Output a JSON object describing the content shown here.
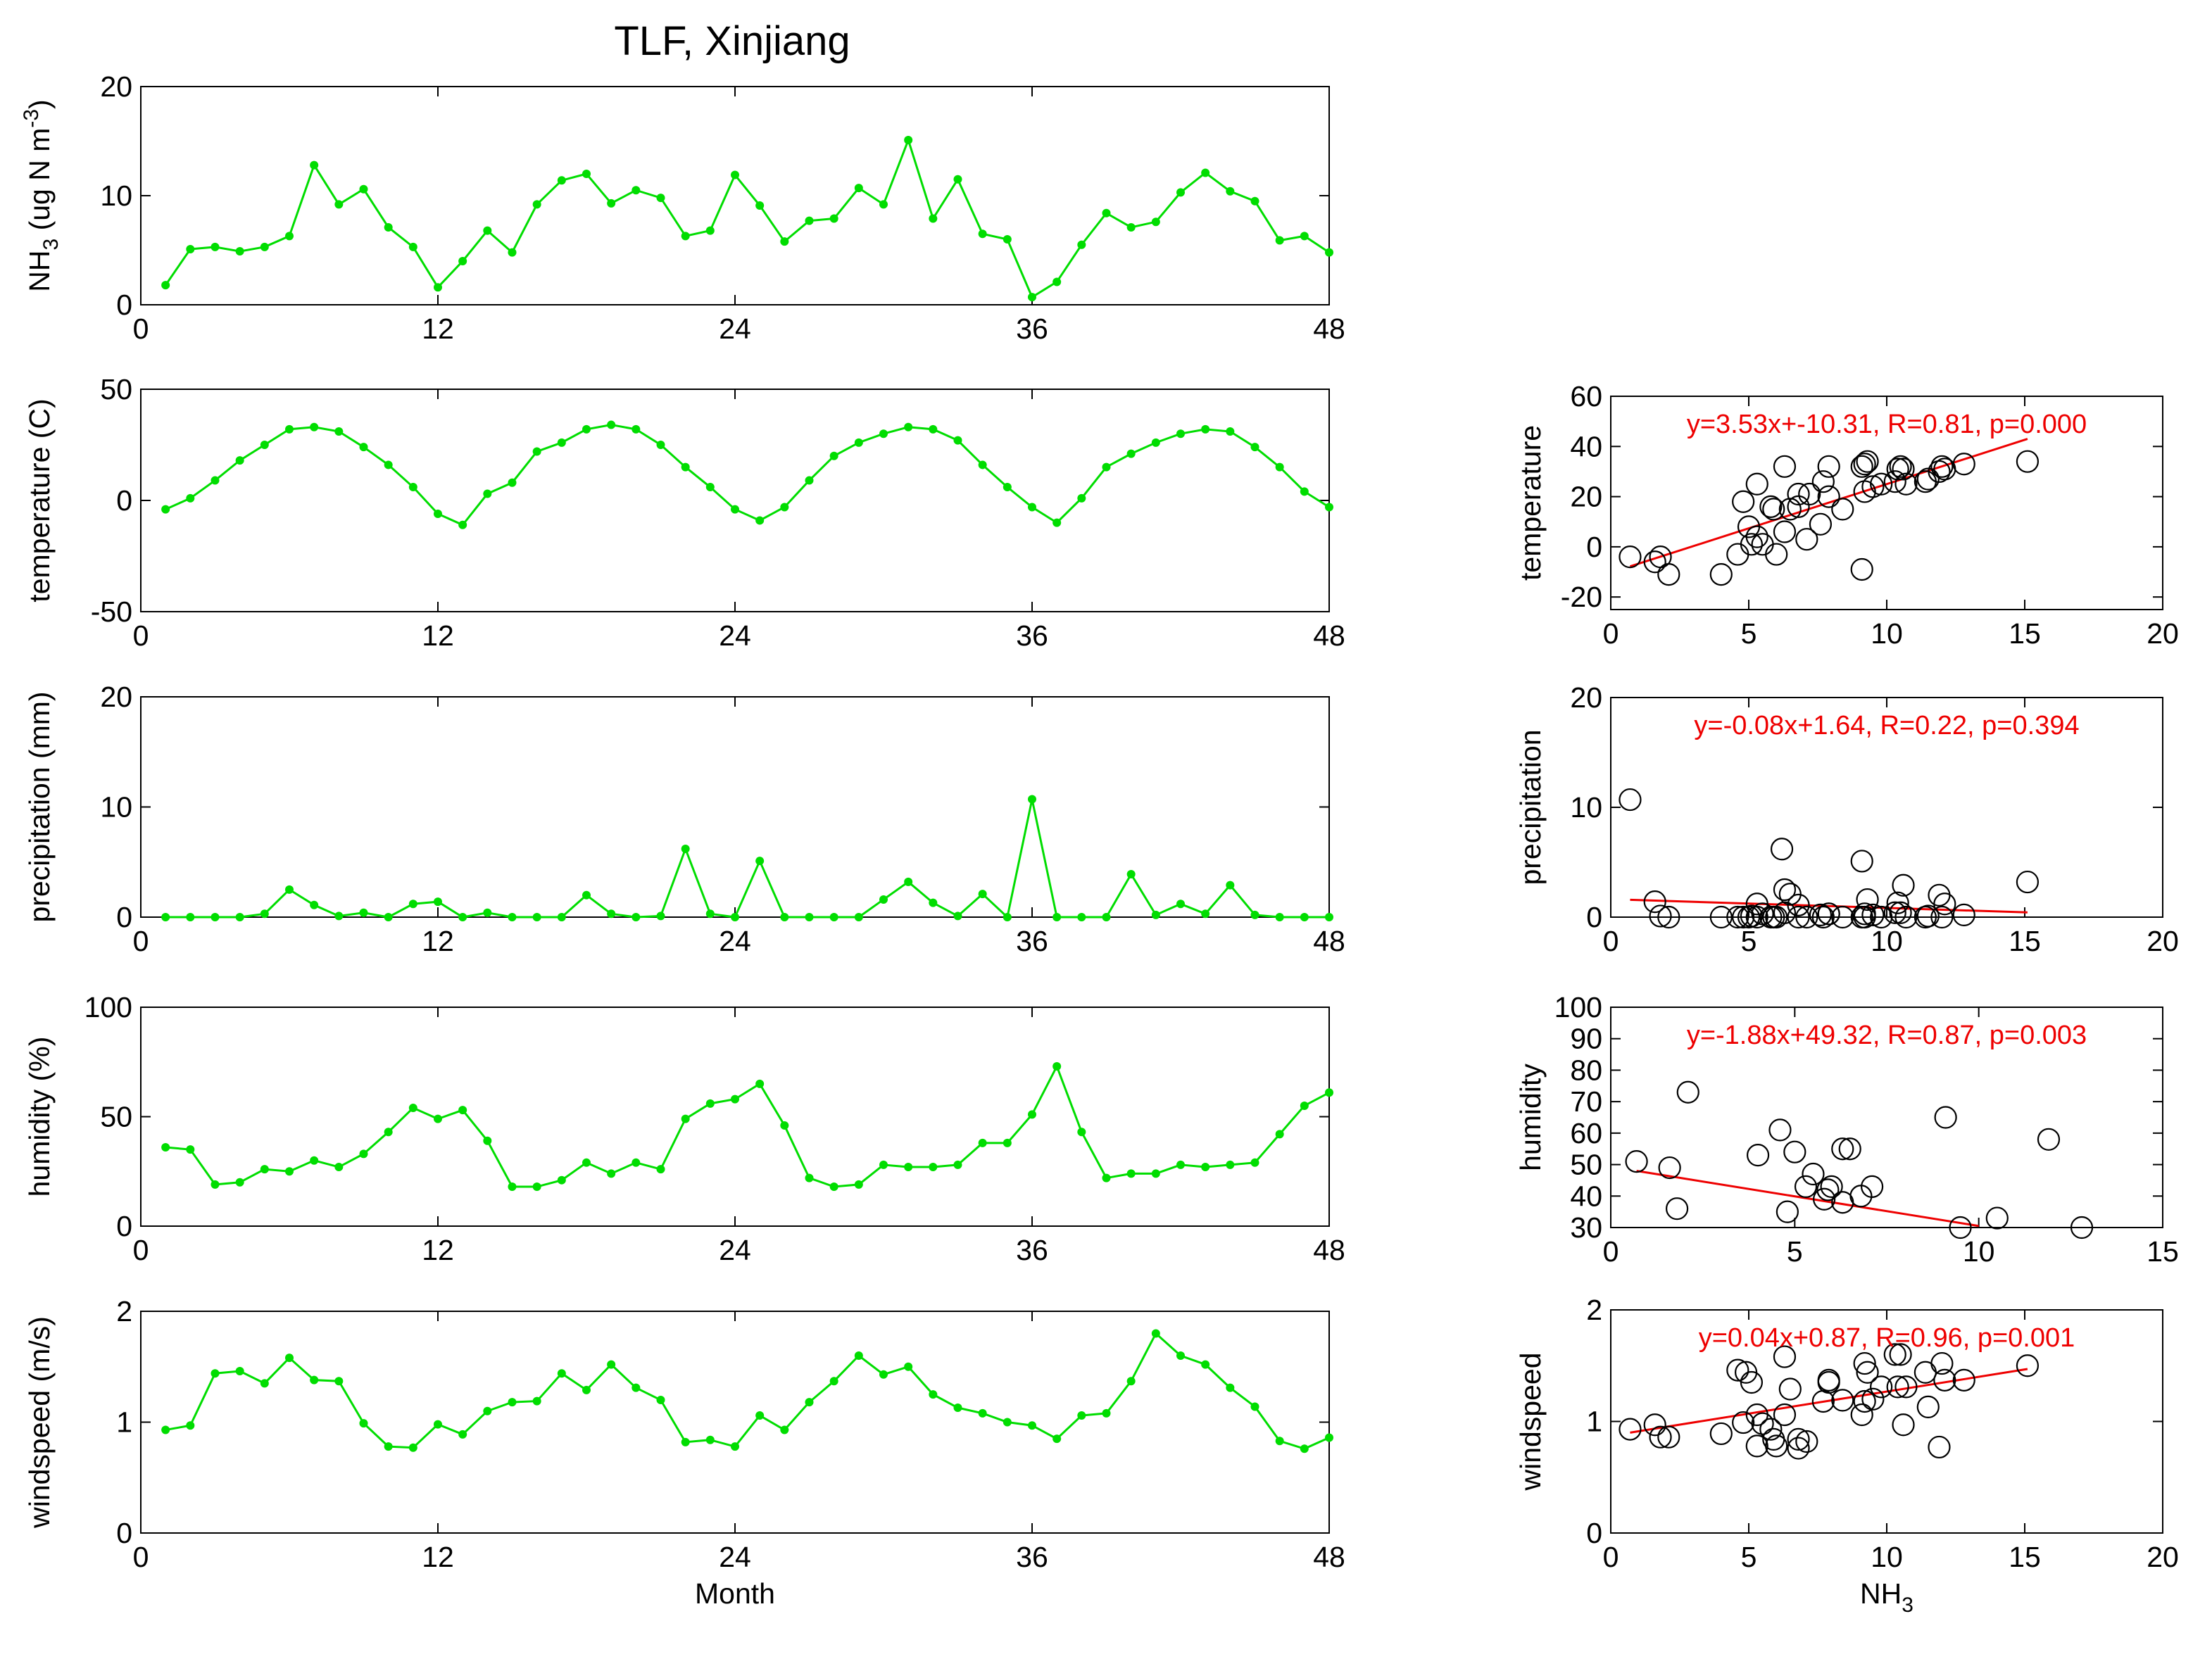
{
  "title": "TLF, Xinjiang",
  "chart_data": [
    {
      "type": "line",
      "id": "ts_nh3",
      "ylabel_main": "NH",
      "ylabel_sub": "3",
      "ylabel_rest": " (ug N m",
      "ylabel_sup": "-3",
      "ylabel_end": ")",
      "xlim": [
        0,
        48
      ],
      "ylim": [
        0,
        20
      ],
      "xticks": [
        "0",
        "12",
        "24",
        "36",
        "48"
      ],
      "yticks": [
        "0",
        "10",
        "20"
      ],
      "color": "#00dd00",
      "x": [
        1,
        2,
        3,
        4,
        5,
        6,
        7,
        8,
        9,
        10,
        11,
        12,
        13,
        14,
        15,
        16,
        17,
        18,
        19,
        20,
        21,
        22,
        23,
        24,
        25,
        26,
        27,
        28,
        29,
        30,
        31,
        32,
        33,
        34,
        35,
        36,
        37,
        38,
        39,
        40,
        41,
        42,
        43,
        44,
        45,
        46,
        47,
        48
      ],
      "y": [
        1.8,
        5.1,
        5.3,
        4.9,
        5.3,
        6.3,
        12.8,
        9.2,
        10.6,
        7.1,
        5.3,
        1.6,
        4.0,
        6.8,
        4.8,
        9.2,
        11.4,
        12.0,
        9.3,
        10.5,
        9.8,
        6.3,
        6.8,
        11.9,
        9.1,
        5.8,
        7.7,
        7.9,
        10.7,
        9.2,
        15.1,
        7.9,
        11.5,
        6.5,
        6.0,
        0.7,
        2.1,
        5.5,
        8.4,
        7.1,
        7.6,
        10.3,
        12.1,
        10.4,
        9.5,
        5.9,
        6.3,
        4.8
      ]
    },
    {
      "type": "line",
      "id": "ts_temp",
      "ylabel": "temperature (C)",
      "xlim": [
        0,
        48
      ],
      "ylim": [
        -50,
        50
      ],
      "xticks": [
        "0",
        "12",
        "24",
        "36",
        "48"
      ],
      "yticks": [
        "-50",
        "0",
        "50"
      ],
      "color": "#00dd00",
      "x": [
        1,
        2,
        3,
        4,
        5,
        6,
        7,
        8,
        9,
        10,
        11,
        12,
        13,
        14,
        15,
        16,
        17,
        18,
        19,
        20,
        21,
        22,
        23,
        24,
        25,
        26,
        27,
        28,
        29,
        30,
        31,
        32,
        33,
        34,
        35,
        36,
        37,
        38,
        39,
        40,
        41,
        42,
        43,
        44,
        45,
        46,
        47,
        48
      ],
      "y": [
        -4,
        1,
        9,
        18,
        25,
        32,
        33,
        31,
        24,
        16,
        6,
        -6,
        -11,
        3,
        8,
        22,
        26,
        32,
        34,
        32,
        25,
        15,
        6,
        -4,
        -9,
        -3,
        9,
        20,
        26,
        30,
        33,
        32,
        27,
        16,
        6,
        -3,
        -10,
        1,
        15,
        21,
        26,
        30,
        32,
        31,
        24,
        15,
        4,
        -3
      ]
    },
    {
      "type": "line",
      "id": "ts_precip",
      "ylabel": "precipitation (mm)",
      "xlim": [
        0,
        48
      ],
      "ylim": [
        0,
        20
      ],
      "xticks": [
        "0",
        "12",
        "24",
        "36",
        "48"
      ],
      "yticks": [
        "0",
        "10",
        "20"
      ],
      "color": "#00dd00",
      "x": [
        1,
        2,
        3,
        4,
        5,
        6,
        7,
        8,
        9,
        10,
        11,
        12,
        13,
        14,
        15,
        16,
        17,
        18,
        19,
        20,
        21,
        22,
        23,
        24,
        25,
        26,
        27,
        28,
        29,
        30,
        31,
        32,
        33,
        34,
        35,
        36,
        37,
        38,
        39,
        40,
        41,
        42,
        43,
        44,
        45,
        46,
        47,
        48
      ],
      "y": [
        0,
        0,
        0,
        0,
        0.3,
        2.5,
        1.1,
        0.1,
        0.4,
        0,
        1.2,
        1.4,
        0,
        0.4,
        0,
        0,
        0,
        2.0,
        0.3,
        0,
        0.1,
        6.2,
        0.3,
        0,
        5.1,
        0,
        0,
        0,
        0,
        1.6,
        3.2,
        1.3,
        0.1,
        2.1,
        0,
        10.7,
        0,
        0,
        0,
        3.9,
        0.2,
        1.2,
        0.3,
        2.9,
        0.2,
        0,
        0,
        0
      ]
    },
    {
      "type": "line",
      "id": "ts_humidity",
      "ylabel": "humidity (%)",
      "xlim": [
        0,
        48
      ],
      "ylim": [
        0,
        100
      ],
      "xticks": [
        "0",
        "12",
        "24",
        "36",
        "48"
      ],
      "yticks": [
        "0",
        "50",
        "100"
      ],
      "color": "#00dd00",
      "x": [
        1,
        2,
        3,
        4,
        5,
        6,
        7,
        8,
        9,
        10,
        11,
        12,
        13,
        14,
        15,
        16,
        17,
        18,
        19,
        20,
        21,
        22,
        23,
        24,
        25,
        26,
        27,
        28,
        29,
        30,
        31,
        32,
        33,
        34,
        35,
        36,
        37,
        38,
        39,
        40,
        41,
        42,
        43,
        44,
        45,
        46,
        47,
        48
      ],
      "y": [
        36,
        35,
        19,
        20,
        26,
        25,
        30,
        27,
        33,
        43,
        54,
        49,
        53,
        39,
        18,
        18,
        21,
        29,
        24,
        29,
        26,
        49,
        56,
        58,
        65,
        46,
        22,
        18,
        19,
        28,
        27,
        27,
        28,
        38,
        38,
        51,
        73,
        43,
        22,
        24,
        24,
        28,
        27,
        28,
        29,
        42,
        55,
        61
      ]
    },
    {
      "type": "line",
      "id": "ts_wind",
      "ylabel": "windspeed (m/s)",
      "xlabel": "Month",
      "xlim": [
        0,
        48
      ],
      "ylim": [
        0,
        2
      ],
      "xticks": [
        "0",
        "12",
        "24",
        "36",
        "48"
      ],
      "yticks": [
        "0",
        "1",
        "2"
      ],
      "color": "#00dd00",
      "x": [
        1,
        2,
        3,
        4,
        5,
        6,
        7,
        8,
        9,
        10,
        11,
        12,
        13,
        14,
        15,
        16,
        17,
        18,
        19,
        20,
        21,
        22,
        23,
        24,
        25,
        26,
        27,
        28,
        29,
        30,
        31,
        32,
        33,
        34,
        35,
        36,
        37,
        38,
        39,
        40,
        41,
        42,
        43,
        44,
        45,
        46,
        47,
        48
      ],
      "y": [
        0.93,
        0.97,
        1.44,
        1.46,
        1.35,
        1.58,
        1.38,
        1.37,
        0.99,
        0.78,
        0.77,
        0.98,
        0.89,
        1.1,
        1.18,
        1.19,
        1.44,
        1.29,
        1.52,
        1.31,
        1.2,
        0.82,
        0.84,
        0.78,
        1.06,
        0.93,
        1.18,
        1.37,
        1.6,
        1.43,
        1.5,
        1.25,
        1.13,
        1.08,
        1.0,
        0.97,
        0.85,
        1.06,
        1.08,
        1.37,
        1.8,
        1.6,
        1.52,
        1.31,
        1.14,
        0.83,
        0.76,
        0.86
      ]
    },
    {
      "type": "scatter",
      "id": "sc_temp",
      "ylabel": "temperature",
      "xlim": [
        0,
        20
      ],
      "ylim": [
        -25,
        60
      ],
      "xticks": [
        "0",
        "5",
        "10",
        "15",
        "20"
      ],
      "yticks": [
        "-20",
        "0",
        "20",
        "40",
        "60"
      ],
      "equation": "y=3.53x+-10.31, R=0.81, p=0.000",
      "fit": {
        "x": [
          0.7,
          15.1
        ],
        "y": [
          -7.8,
          43.0
        ],
        "color": "#ee0000"
      },
      "x": [
        0.7,
        1.6,
        1.8,
        2.1,
        4.0,
        4.6,
        4.8,
        5.0,
        5.1,
        5.3,
        5.3,
        5.5,
        5.8,
        5.9,
        6.0,
        6.3,
        6.3,
        6.5,
        6.8,
        6.8,
        7.1,
        7.2,
        7.6,
        7.7,
        7.9,
        7.9,
        8.4,
        9.1,
        9.1,
        9.2,
        9.2,
        9.3,
        9.5,
        9.8,
        10.3,
        10.4,
        10.5,
        10.6,
        10.7,
        11.4,
        11.5,
        11.9,
        12.0,
        12.1,
        12.8,
        15.1
      ],
      "y": [
        -4,
        -6,
        -4,
        -11,
        -11,
        -3,
        18,
        8,
        1,
        25,
        4,
        1,
        16,
        15,
        -3,
        32,
        6,
        15,
        21,
        16,
        3,
        21,
        9,
        26,
        32,
        20,
        15,
        -9,
        32,
        33,
        22,
        34,
        24,
        25,
        26,
        31,
        32,
        31,
        25,
        26,
        27,
        30,
        32,
        31,
        33,
        34
      ]
    },
    {
      "type": "scatter",
      "id": "sc_precip",
      "ylabel": "precipitation",
      "xlim": [
        0,
        20
      ],
      "ylim": [
        0,
        20
      ],
      "xticks": [
        "0",
        "5",
        "10",
        "15",
        "20"
      ],
      "yticks": [
        "0",
        "10",
        "20"
      ],
      "equation": "y=-0.08x+1.64, R=0.22, p=0.394",
      "fit": {
        "x": [
          0.7,
          15.1
        ],
        "y": [
          1.58,
          0.43
        ],
        "color": "#ee0000"
      },
      "x": [
        0.7,
        1.6,
        1.8,
        2.1,
        4.0,
        4.6,
        4.8,
        5.0,
        5.1,
        5.3,
        5.3,
        5.5,
        5.8,
        5.9,
        6.0,
        6.2,
        6.3,
        6.3,
        6.5,
        6.8,
        6.8,
        7.1,
        7.6,
        7.7,
        7.9,
        7.9,
        8.4,
        9.1,
        9.1,
        9.2,
        9.2,
        9.3,
        9.5,
        9.8,
        10.3,
        10.4,
        10.5,
        10.6,
        10.7,
        11.4,
        11.5,
        11.9,
        12.0,
        12.1,
        12.8,
        15.1
      ],
      "y": [
        10.7,
        1.4,
        0.1,
        0,
        0,
        0,
        0,
        0,
        0.1,
        0,
        1.2,
        0.3,
        0,
        0,
        0,
        6.2,
        0.4,
        2.5,
        2.1,
        0,
        1.1,
        0,
        0.2,
        0,
        0.3,
        0.3,
        0,
        5.1,
        0,
        0,
        0.3,
        1.6,
        0.2,
        0,
        0.4,
        1.3,
        0.4,
        2.9,
        0,
        0,
        0.1,
        2.0,
        0,
        1.2,
        0.2,
        3.2
      ]
    },
    {
      "type": "scatter",
      "id": "sc_humidity",
      "ylabel": "humidity",
      "xlim": [
        0,
        15
      ],
      "ylim": [
        30,
        100
      ],
      "xticks": [
        "0",
        "5",
        "10",
        "15"
      ],
      "yticks": [
        "30",
        "40",
        "50",
        "60",
        "70",
        "80",
        "90",
        "100"
      ],
      "equation": "y=-1.88x+49.32, R=0.87, p=0.003",
      "fit": {
        "x": [
          0.7,
          10.0
        ],
        "y": [
          48.0,
          30.5
        ],
        "color": "#ee0000"
      },
      "x": [
        0.7,
        1.6,
        1.8,
        2.1,
        4.0,
        4.6,
        4.8,
        5.0,
        5.3,
        5.5,
        5.8,
        5.9,
        6.0,
        6.3,
        6.3,
        6.5,
        6.8,
        7.1,
        9.1,
        9.5,
        10.5,
        11.9,
        12.8
      ],
      "y": [
        51,
        49,
        36,
        73,
        53,
        61,
        35,
        54,
        43,
        47,
        39,
        42,
        43,
        55,
        38,
        55,
        40,
        43,
        65,
        30,
        33,
        58,
        30
      ]
    },
    {
      "type": "scatter",
      "id": "sc_wind",
      "ylabel": "windspeed",
      "xlabel_main": "NH",
      "xlabel_sub": "3",
      "xlim": [
        0,
        20
      ],
      "ylim": [
        0,
        2
      ],
      "xticks": [
        "0",
        "5",
        "10",
        "15",
        "20"
      ],
      "yticks": [
        "0",
        "1",
        "2"
      ],
      "equation": "y=0.04x+0.87, R=0.96, p=0.001",
      "fit": {
        "x": [
          0.7,
          15.1
        ],
        "y": [
          0.9,
          1.47
        ],
        "color": "#ee0000"
      },
      "x": [
        0.7,
        1.6,
        1.8,
        2.1,
        4.0,
        4.6,
        4.8,
        4.9,
        5.1,
        5.3,
        5.3,
        5.5,
        5.8,
        5.9,
        6.0,
        6.3,
        6.3,
        6.5,
        6.8,
        6.8,
        7.1,
        7.7,
        7.9,
        7.9,
        8.4,
        9.1,
        9.2,
        9.2,
        9.3,
        9.5,
        9.8,
        10.3,
        10.4,
        10.5,
        10.6,
        10.7,
        11.4,
        11.5,
        11.9,
        12.0,
        12.1,
        12.8,
        15.1
      ],
      "y": [
        0.93,
        0.97,
        0.86,
        0.86,
        0.89,
        1.46,
        0.99,
        1.44,
        1.35,
        0.78,
        1.06,
        0.98,
        0.93,
        0.84,
        0.78,
        1.58,
        1.06,
        1.29,
        0.84,
        0.76,
        0.82,
        1.18,
        1.37,
        1.35,
        1.19,
        1.06,
        1.52,
        1.18,
        1.44,
        1.2,
        1.31,
        1.6,
        1.31,
        1.6,
        0.97,
        1.31,
        1.44,
        1.13,
        0.77,
        1.52,
        1.37,
        1.37,
        1.5
      ]
    }
  ]
}
